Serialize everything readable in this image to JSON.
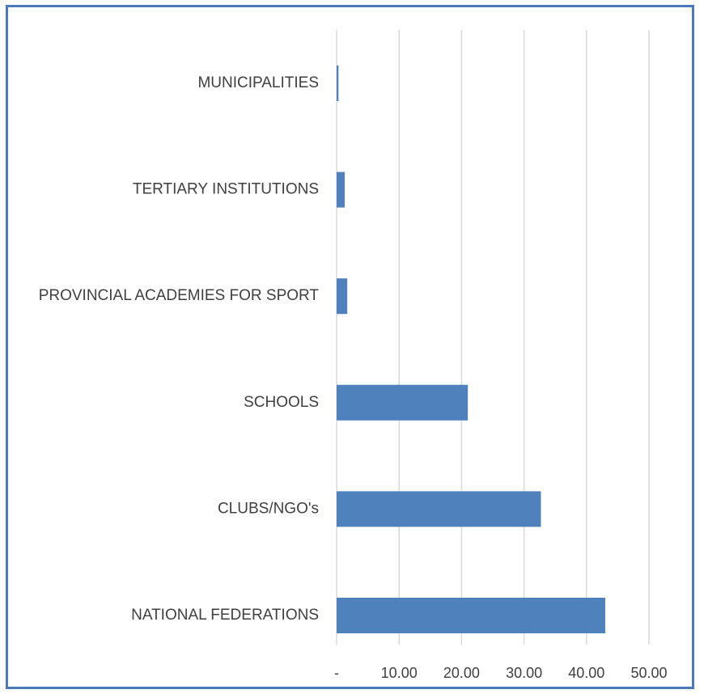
{
  "chart_data": {
    "type": "bar",
    "orientation": "horizontal",
    "categories": [
      "MUNICIPALITIES",
      "TERTIARY INSTITUTIONS",
      "PROVINCIAL ACADEMIES FOR SPORT",
      "SCHOOLS",
      "CLUBS/NGO's",
      "NATIONAL FEDERATIONS"
    ],
    "values": [
      0.3,
      1.3,
      1.7,
      21.0,
      32.7,
      43.0
    ],
    "xlim": [
      0,
      50
    ],
    "xticks": [
      0,
      10,
      20,
      30,
      40,
      50
    ],
    "xtick_labels": [
      "-",
      "10.00",
      "20.00",
      "30.00",
      "40.00",
      "50.00"
    ],
    "title": "",
    "xlabel": "",
    "ylabel": "",
    "grid": "vertical",
    "legend": "none",
    "bar_color": "#4f81bd",
    "grid_color": "#d9d9d9",
    "border_color": "#4a78b8"
  }
}
